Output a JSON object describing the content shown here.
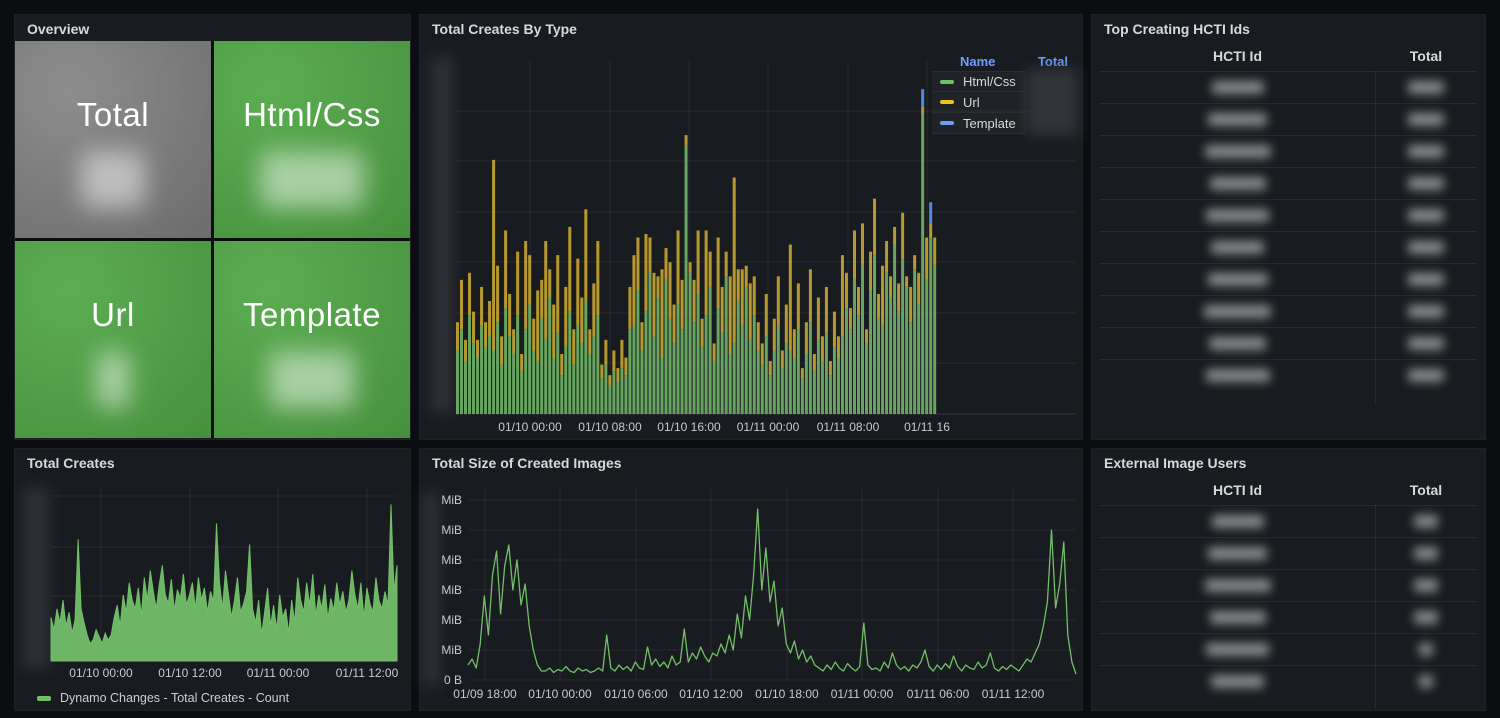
{
  "colors": {
    "page_bg": "#0c0d10",
    "panel_bg": "#181b1f",
    "accent_green": "#73BF69",
    "accent_yellow": "#EDC21C",
    "accent_blue": "#6D9EF1",
    "link_blue": "#6e9fff",
    "text": "#d8d9da"
  },
  "panels": {
    "overview": {
      "title": "Overview",
      "values_blurred": true,
      "tiles": [
        {
          "label": "Total",
          "scheme": "gray"
        },
        {
          "label": "Html/Css",
          "scheme": "green"
        },
        {
          "label": "Url",
          "scheme": "green"
        },
        {
          "label": "Template",
          "scheme": "green"
        }
      ]
    },
    "creates_by_type": {
      "title": "Total Creates By Type",
      "legend": {
        "name_header": "Name",
        "total_header": "Total",
        "totals_blurred": true,
        "items": [
          {
            "label": "Html/Css",
            "color": "#73BF69"
          },
          {
            "label": "Url",
            "color": "#EDC21C"
          },
          {
            "label": "Template",
            "color": "#6D9EF1"
          }
        ]
      }
    },
    "top_creating": {
      "title": "Top Creating HCTI Ids",
      "columns": [
        "HCTI Id",
        "Total"
      ],
      "row_count": 10,
      "cells_blurred": true
    },
    "total_creates": {
      "title": "Total Creates",
      "legend_label": "Dynamo Changes - Total Creates - Count"
    },
    "total_size": {
      "title": "Total Size of Created Images"
    },
    "external_users": {
      "title": "External Image Users",
      "columns": [
        "HCTI Id",
        "Total"
      ],
      "row_count": 6,
      "cells_blurred": true
    }
  },
  "chart_data": [
    {
      "type": "bar",
      "title": "Total Creates By Type",
      "stacked": true,
      "y_axis": "blurred (relative units 0-100 of plot height)",
      "x_ticks": [
        "01/10 00:00",
        "01/10 08:00",
        "01/10 16:00",
        "01/11 00:00",
        "01/11 08:00",
        "01/11 16"
      ],
      "series": [
        {
          "name": "Html/Css",
          "color": "#6FB166",
          "values": [
            18,
            24,
            15,
            28,
            20,
            16,
            25,
            19,
            22,
            18,
            26,
            14,
            30,
            22,
            17,
            28,
            12,
            24,
            31,
            18,
            15,
            27,
            21,
            33,
            16,
            23,
            11,
            19,
            29,
            14,
            25,
            20,
            32,
            17,
            22,
            28,
            10,
            14,
            8,
            12,
            9,
            13,
            11,
            24,
            25,
            35,
            18,
            29,
            40,
            22,
            33,
            16,
            38,
            27,
            20,
            31,
            24,
            76,
            40,
            26,
            34,
            19,
            28,
            36,
            15,
            30,
            23,
            39,
            17,
            20,
            32,
            25,
            36,
            21,
            28,
            18,
            14,
            22,
            11,
            18,
            25,
            13,
            20,
            18,
            16,
            24,
            10,
            17,
            26,
            12,
            21,
            15,
            23,
            11,
            19,
            16,
            22,
            30,
            24,
            38,
            28,
            42,
            20,
            35,
            45,
            27,
            25,
            40,
            33,
            48,
            29,
            44,
            36,
            26,
            41,
            31,
            85,
            38,
            50,
            42
          ]
        },
        {
          "name": "Url",
          "color": "#C7A42F",
          "values": [
            8,
            14,
            6,
            12,
            9,
            5,
            11,
            7,
            10,
            54,
            16,
            8,
            22,
            12,
            7,
            18,
            5,
            25,
            14,
            9,
            20,
            11,
            28,
            8,
            15,
            22,
            6,
            17,
            24,
            10,
            19,
            13,
            26,
            7,
            15,
            21,
            4,
            7,
            3,
            6,
            4,
            8,
            5,
            12,
            20,
            15,
            8,
            22,
            10,
            18,
            6,
            25,
            9,
            16,
            11,
            21,
            14,
            3,
            3,
            12,
            18,
            8,
            24,
            10,
            5,
            20,
            13,
            7,
            22,
            47,
            9,
            16,
            6,
            16,
            11,
            8,
            6,
            12,
            4,
            9,
            14,
            5,
            11,
            30,
            8,
            13,
            3,
            9,
            15,
            5,
            12,
            7,
            13,
            4,
            10,
            6,
            23,
            10,
            6,
            14,
            8,
            12,
            4,
            11,
            16,
            7,
            17,
            9,
            6,
            5,
            8,
            13,
            3,
            10,
            4,
            9,
            2,
            12,
            4,
            8
          ]
        },
        {
          "name": "Template",
          "color": "#5794F2",
          "values": [
            0,
            0,
            0,
            0,
            0,
            0,
            0,
            0,
            0,
            0,
            0,
            0,
            0,
            0,
            0,
            0,
            0,
            0,
            0,
            0,
            0,
            0,
            0,
            0,
            0,
            0,
            0,
            0,
            0,
            0,
            0,
            0,
            0,
            0,
            0,
            0,
            0,
            0,
            0,
            0,
            0,
            0,
            0,
            0,
            0,
            0,
            0,
            0,
            0,
            0,
            0,
            0,
            0,
            0,
            0,
            0,
            0,
            0,
            0,
            0,
            0,
            0,
            0,
            0,
            0,
            0,
            0,
            0,
            0,
            0,
            0,
            0,
            0,
            0,
            0,
            0,
            0,
            0,
            0,
            0,
            0,
            0,
            0,
            0,
            0,
            0,
            0,
            0,
            0,
            0,
            0,
            0,
            0,
            0,
            0,
            0,
            0,
            0,
            0,
            0,
            0,
            0,
            0,
            0,
            0,
            0,
            0,
            0,
            0,
            0,
            0,
            0,
            0,
            0,
            0,
            0,
            5,
            0,
            6,
            0
          ]
        }
      ]
    },
    {
      "type": "area",
      "title": "Total Creates",
      "y_axis": "blurred (relative units 0-100 of plot height)",
      "x_ticks": [
        "01/10 00:00",
        "01/10 12:00",
        "01/11 00:00",
        "01/11 12:00"
      ],
      "series": [
        {
          "name": "Dynamo Changes - Total Creates - Count",
          "color": "#73BF69",
          "values": [
            25,
            18,
            30,
            22,
            35,
            20,
            28,
            16,
            24,
            70,
            30,
            22,
            15,
            10,
            12,
            18,
            14,
            10,
            16,
            12,
            15,
            25,
            32,
            20,
            38,
            28,
            45,
            35,
            30,
            42,
            26,
            48,
            35,
            52,
            40,
            30,
            44,
            55,
            38,
            33,
            47,
            29,
            41,
            36,
            50,
            32,
            38,
            45,
            30,
            48,
            35,
            42,
            28,
            40,
            34,
            79,
            45,
            30,
            52,
            38,
            25,
            35,
            48,
            28,
            33,
            40,
            67,
            30,
            22,
            35,
            15,
            28,
            42,
            20,
            32,
            18,
            38,
            25,
            30,
            16,
            35,
            22,
            48,
            35,
            28,
            45,
            32,
            50,
            26,
            38,
            30,
            44,
            24,
            36,
            29,
            45,
            32,
            40,
            28,
            35,
            52,
            38,
            30,
            45,
            25,
            42,
            33,
            28,
            48,
            35,
            30,
            40,
            32,
            90,
            40,
            55
          ]
        }
      ]
    },
    {
      "type": "line",
      "title": "Total Size of Created Images",
      "y_ticks": [
        "MiB",
        "MiB",
        "MiB",
        "MiB",
        "MiB",
        "MiB",
        "0 B"
      ],
      "y_tick_numbers": "blurred",
      "x_ticks": [
        "01/09 18:00",
        "01/10 00:00",
        "01/10 06:00",
        "01/10 12:00",
        "01/10 18:00",
        "01/11 00:00",
        "01/11 06:00",
        "01/11 12:00"
      ],
      "series": [
        {
          "name": "Total Size",
          "color": "#73BF69",
          "values_mib": [
            0.5,
            0.7,
            0.4,
            1.2,
            2.8,
            1.5,
            3.5,
            4.3,
            2.2,
            3.8,
            4.5,
            3.0,
            4.0,
            2.5,
            3.2,
            1.8,
            1.0,
            0.5,
            0.3,
            0.3,
            0.4,
            0.25,
            0.35,
            0.3,
            0.45,
            0.3,
            0.25,
            0.4,
            0.3,
            0.35,
            0.25,
            0.3,
            0.4,
            0.3,
            1.5,
            0.4,
            0.3,
            0.5,
            0.35,
            0.45,
            0.3,
            0.6,
            0.4,
            0.35,
            1.1,
            0.5,
            0.7,
            0.45,
            0.6,
            0.4,
            0.8,
            0.5,
            0.6,
            1.7,
            0.6,
            0.9,
            0.7,
            1.1,
            0.8,
            0.6,
            0.9,
            0.8,
            1.2,
            0.9,
            1.5,
            1.0,
            2.2,
            1.4,
            2.8,
            2.0,
            3.5,
            5.7,
            3.0,
            4.4,
            2.6,
            3.3,
            1.8,
            2.4,
            1.2,
            0.9,
            1.3,
            0.7,
            1.0,
            0.6,
            0.8,
            0.5,
            0.4,
            0.3,
            0.5,
            0.35,
            0.6,
            0.4,
            0.3,
            0.55,
            0.4,
            0.3,
            0.45,
            1.9,
            0.5,
            0.35,
            0.4,
            0.3,
            0.6,
            0.4,
            0.9,
            0.5,
            0.35,
            0.45,
            0.3,
            0.5,
            0.4,
            0.6,
            1.0,
            0.45,
            0.3,
            0.5,
            0.35,
            0.55,
            0.4,
            0.8,
            0.45,
            0.3,
            0.5,
            0.4,
            0.35,
            0.6,
            0.4,
            0.5,
            0.9,
            0.4,
            0.3,
            0.45,
            0.35,
            0.5,
            0.4,
            0.3,
            0.5,
            0.7,
            0.6,
            0.9,
            1.2,
            1.8,
            2.6,
            5.0,
            2.4,
            3.2,
            4.6,
            1.5,
            0.6,
            0.2
          ]
        }
      ]
    }
  ]
}
